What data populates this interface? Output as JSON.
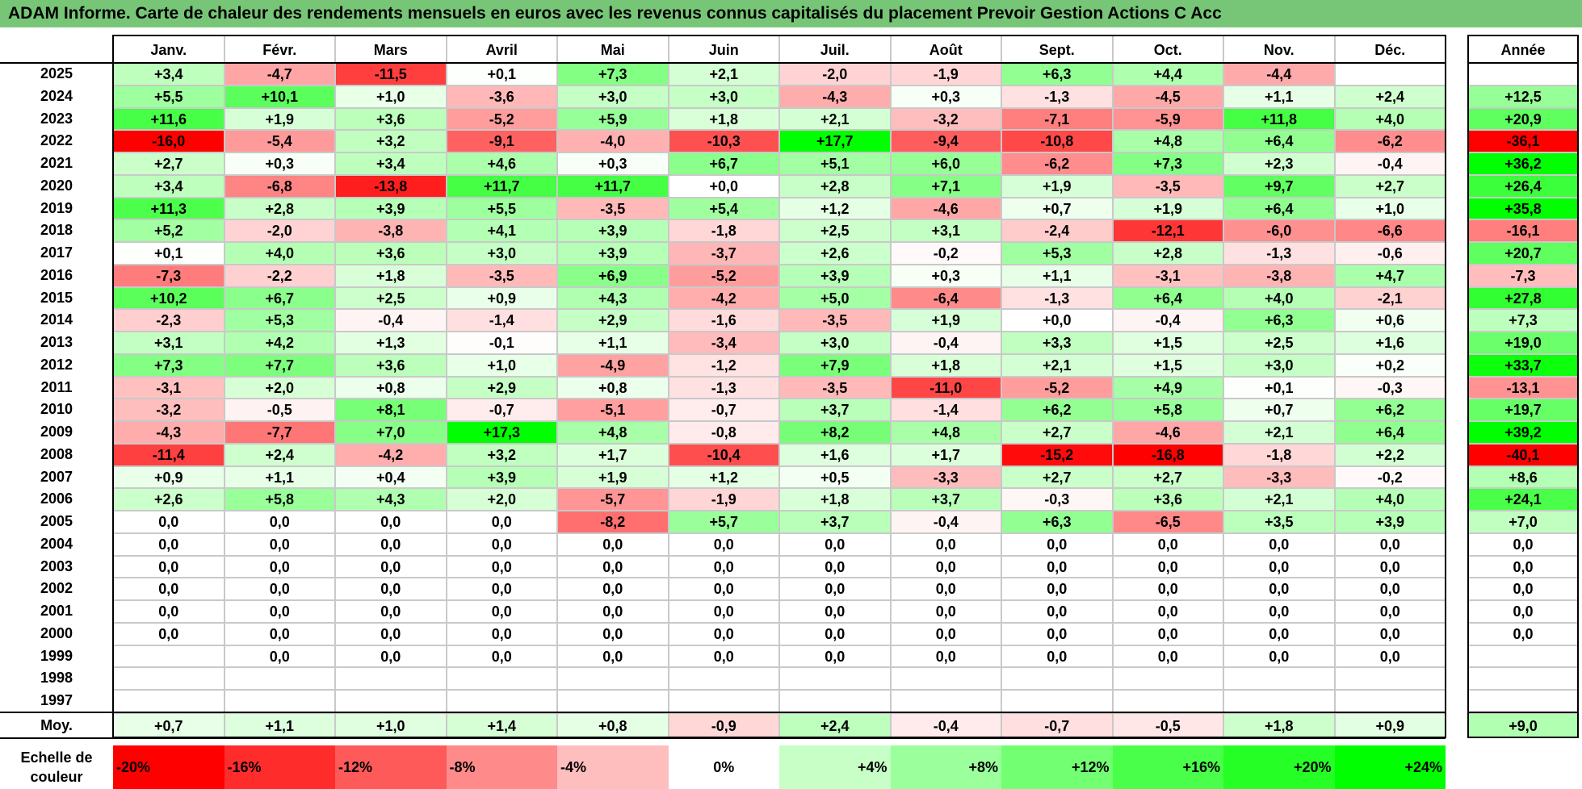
{
  "title": "ADAM Informe. Carte de chaleur des rendements mensuels en euros avec les revenus connus capitalisés du placement Prevoir Gestion Actions C Acc",
  "chart_data": {
    "type": "heatmap",
    "months": [
      "Janv.",
      "Févr.",
      "Mars",
      "Avril",
      "Mai",
      "Juin",
      "Juil.",
      "Août",
      "Sept.",
      "Oct.",
      "Nov.",
      "Déc."
    ],
    "year_header": "Année",
    "years": [
      "2025",
      "2024",
      "2023",
      "2022",
      "2021",
      "2020",
      "2019",
      "2018",
      "2017",
      "2016",
      "2015",
      "2014",
      "2013",
      "2012",
      "2011",
      "2010",
      "2009",
      "2008",
      "2007",
      "2006",
      "2005",
      "2004",
      "2003",
      "2002",
      "2001",
      "2000",
      "1999",
      "1998",
      "1997"
    ],
    "values": [
      [
        "+3,4",
        "-4,7",
        "-11,5",
        "+0,1",
        "+7,3",
        "+2,1",
        "-2,0",
        "-1,9",
        "+6,3",
        "+4,4",
        "-4,4",
        ""
      ],
      [
        "+5,5",
        "+10,1",
        "+1,0",
        "-3,6",
        "+3,0",
        "+3,0",
        "-4,3",
        "+0,3",
        "-1,3",
        "-4,5",
        "+1,1",
        "+2,4"
      ],
      [
        "+11,6",
        "+1,9",
        "+3,6",
        "-5,2",
        "+5,9",
        "+1,8",
        "+2,1",
        "-3,2",
        "-7,1",
        "-5,9",
        "+11,8",
        "+4,0"
      ],
      [
        "-16,0",
        "-5,4",
        "+3,2",
        "-9,1",
        "-4,0",
        "-10,3",
        "+17,7",
        "-9,4",
        "-10,8",
        "+4,8",
        "+6,4",
        "-6,2"
      ],
      [
        "+2,7",
        "+0,3",
        "+3,4",
        "+4,6",
        "+0,3",
        "+6,7",
        "+5,1",
        "+6,0",
        "-6,2",
        "+7,3",
        "+2,3",
        "-0,4"
      ],
      [
        "+3,4",
        "-6,8",
        "-13,8",
        "+11,7",
        "+11,7",
        "+0,0",
        "+2,8",
        "+7,1",
        "+1,9",
        "-3,5",
        "+9,7",
        "+2,7"
      ],
      [
        "+11,3",
        "+2,8",
        "+3,9",
        "+5,5",
        "-3,5",
        "+5,4",
        "+1,2",
        "-4,6",
        "+0,7",
        "+1,9",
        "+6,4",
        "+1,0"
      ],
      [
        "+5,2",
        "-2,0",
        "-3,8",
        "+4,1",
        "+3,9",
        "-1,8",
        "+2,5",
        "+3,1",
        "-2,4",
        "-12,1",
        "-6,0",
        "-6,6"
      ],
      [
        "+0,1",
        "+4,0",
        "+3,6",
        "+3,0",
        "+3,9",
        "-3,7",
        "+2,6",
        "-0,2",
        "+5,3",
        "+2,8",
        "-1,3",
        "-0,6"
      ],
      [
        "-7,3",
        "-2,2",
        "+1,8",
        "-3,5",
        "+6,9",
        "-5,2",
        "+3,9",
        "+0,3",
        "+1,1",
        "-3,1",
        "-3,8",
        "+4,7"
      ],
      [
        "+10,2",
        "+6,7",
        "+2,5",
        "+0,9",
        "+4,3",
        "-4,2",
        "+5,0",
        "-6,4",
        "-1,3",
        "+6,4",
        "+4,0",
        "-2,1"
      ],
      [
        "-2,3",
        "+5,3",
        "-0,4",
        "-1,4",
        "+2,9",
        "-1,6",
        "-3,5",
        "+1,9",
        "+0,0",
        "-0,4",
        "+6,3",
        "+0,6"
      ],
      [
        "+3,1",
        "+4,2",
        "+1,3",
        "-0,1",
        "+1,1",
        "-3,4",
        "+3,0",
        "-0,4",
        "+3,3",
        "+1,5",
        "+2,5",
        "+1,6"
      ],
      [
        "+7,3",
        "+7,7",
        "+3,6",
        "+1,0",
        "-4,9",
        "-1,2",
        "+7,9",
        "+1,8",
        "+2,1",
        "+1,5",
        "+3,0",
        "+0,2"
      ],
      [
        "-3,1",
        "+2,0",
        "+0,8",
        "+2,9",
        "+0,8",
        "-1,3",
        "-3,5",
        "-11,0",
        "-5,2",
        "+4,9",
        "+0,1",
        "-0,3"
      ],
      [
        "-3,2",
        "-0,5",
        "+8,1",
        "-0,7",
        "-5,1",
        "-0,7",
        "+3,7",
        "-1,4",
        "+6,2",
        "+5,8",
        "+0,7",
        "+6,2"
      ],
      [
        "-4,3",
        "-7,7",
        "+7,0",
        "+17,3",
        "+4,8",
        "-0,8",
        "+8,2",
        "+4,8",
        "+2,7",
        "-4,6",
        "+2,1",
        "+6,4"
      ],
      [
        "-11,4",
        "+2,4",
        "-4,2",
        "+3,2",
        "+1,7",
        "-10,4",
        "+1,6",
        "+1,7",
        "-15,2",
        "-16,8",
        "-1,8",
        "+2,2"
      ],
      [
        "+0,9",
        "+1,1",
        "+0,4",
        "+3,9",
        "+1,9",
        "+1,2",
        "+0,5",
        "-3,3",
        "+2,7",
        "+2,7",
        "-3,3",
        "-0,2"
      ],
      [
        "+2,6",
        "+5,8",
        "+4,3",
        "+2,0",
        "-5,7",
        "-1,9",
        "+1,8",
        "+3,7",
        "-0,3",
        "+3,6",
        "+2,1",
        "+4,0"
      ],
      [
        "0,0",
        "0,0",
        "0,0",
        "0,0",
        "-8,2",
        "+5,7",
        "+3,7",
        "-0,4",
        "+6,3",
        "-6,5",
        "+3,5",
        "+3,9"
      ],
      [
        "0,0",
        "0,0",
        "0,0",
        "0,0",
        "0,0",
        "0,0",
        "0,0",
        "0,0",
        "0,0",
        "0,0",
        "0,0",
        "0,0"
      ],
      [
        "0,0",
        "0,0",
        "0,0",
        "0,0",
        "0,0",
        "0,0",
        "0,0",
        "0,0",
        "0,0",
        "0,0",
        "0,0",
        "0,0"
      ],
      [
        "0,0",
        "0,0",
        "0,0",
        "0,0",
        "0,0",
        "0,0",
        "0,0",
        "0,0",
        "0,0",
        "0,0",
        "0,0",
        "0,0"
      ],
      [
        "0,0",
        "0,0",
        "0,0",
        "0,0",
        "0,0",
        "0,0",
        "0,0",
        "0,0",
        "0,0",
        "0,0",
        "0,0",
        "0,0"
      ],
      [
        "0,0",
        "0,0",
        "0,0",
        "0,0",
        "0,0",
        "0,0",
        "0,0",
        "0,0",
        "0,0",
        "0,0",
        "0,0",
        "0,0"
      ],
      [
        "",
        "0,0",
        "0,0",
        "0,0",
        "0,0",
        "0,0",
        "0,0",
        "0,0",
        "0,0",
        "0,0",
        "0,0",
        "0,0"
      ],
      [
        "",
        "",
        "",
        "",
        "",
        "",
        "",
        "",
        "",
        "",
        "",
        ""
      ],
      [
        "",
        "",
        "",
        "",
        "",
        "",
        "",
        "",
        "",
        "",
        "",
        ""
      ]
    ],
    "annual": [
      "",
      "+12,5",
      "+20,9",
      "-36,1",
      "+36,2",
      "+26,4",
      "+35,8",
      "-16,1",
      "+20,7",
      "-7,3",
      "+27,8",
      "+7,3",
      "+19,0",
      "+33,7",
      "-13,1",
      "+19,7",
      "+39,2",
      "-40,1",
      "+8,6",
      "+24,1",
      "+7,0",
      "0,0",
      "0,0",
      "0,0",
      "0,0",
      "0,0",
      "",
      "",
      ""
    ],
    "average_label": "Moy.",
    "averages": [
      "+0,7",
      "+1,1",
      "+1,0",
      "+1,4",
      "+0,8",
      "-0,9",
      "+2,4",
      "-0,4",
      "-0,7",
      "-0,5",
      "+1,8",
      "+0,9"
    ],
    "annual_average": "+9,0",
    "scale_label": "Echelle de couleur",
    "scale": [
      "-20%",
      "-16%",
      "-12%",
      "-8%",
      "-4%",
      "0%",
      "+4%",
      "+8%",
      "+12%",
      "+16%",
      "+20%",
      "+24%"
    ],
    "colors": {
      "negative": "#ff0000",
      "positive": "#00ff00",
      "neutral": "#ffffff",
      "title_bg": "#77c677"
    }
  }
}
